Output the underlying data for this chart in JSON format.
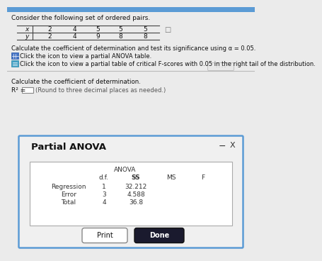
{
  "title_text": "Consider the following set of ordered pairs.",
  "table_x_label": "x",
  "table_y_label": "y",
  "x_values": [
    "2",
    "4",
    "5",
    "5",
    "5"
  ],
  "y_values": [
    "2",
    "4",
    "9",
    "8",
    "8"
  ],
  "instruction1": "Calculate the coefficient of determination and test its significance using α = 0.05.",
  "icon1_text": "Click the icon to view a partial ANOVA table.",
  "icon2_text": "Click the icon to view a partial table of critical F-scores with 0.05 in the right tail of the distribution.",
  "calc_label": "Calculate the coefficient of determination.",
  "r2_label": "R² =",
  "r2_hint": "(Round to three decimal places as needed.)",
  "dialog_title": "Partial ANOVA",
  "anova_label": "ANOVA",
  "col_headers": [
    "d.f.",
    "SS",
    "MS",
    "F"
  ],
  "row_labels": [
    "Regression",
    "Error",
    "Total"
  ],
  "df_values": [
    "1",
    "3",
    "4"
  ],
  "ss_values": [
    "32.212",
    "4.588",
    "36.8"
  ],
  "btn1_text": "Print",
  "btn2_text": "Done",
  "bg_color": "#ebebeb",
  "top_bar_color": "#5b9bd5",
  "dialog_border_color": "#5b9bd5",
  "dialog_bg": "#f0f0f0",
  "table_bg": "#ffffff",
  "icon1_color": "#4472c4",
  "icon2_color": "#44a0c4",
  "minus_sign": "−",
  "x_sign": "X"
}
